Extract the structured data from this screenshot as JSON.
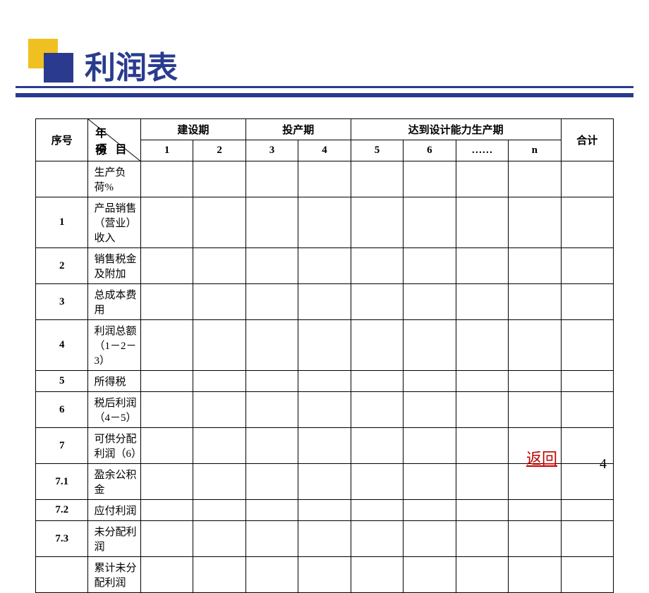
{
  "title": "利润表",
  "decor": {
    "yellow": "#f0c020",
    "navy": "#2a3b8f"
  },
  "header": {
    "seq": "序号",
    "diag_top": "年份",
    "diag_bottom": "项目",
    "groups": [
      {
        "label": "建设期",
        "span": 2
      },
      {
        "label": "投产期",
        "span": 2
      },
      {
        "label": "达到设计能力生产期",
        "span": 4
      }
    ],
    "periods": [
      "1",
      "2",
      "3",
      "4",
      "5",
      "6",
      "……",
      "n"
    ],
    "total": "合计"
  },
  "rows": [
    {
      "seq": "",
      "item": "生产负荷%"
    },
    {
      "seq": "1",
      "item": "产品销售（营业）收入"
    },
    {
      "seq": "2",
      "item": "销售税金及附加"
    },
    {
      "seq": "3",
      "item": "总成本费用"
    },
    {
      "seq": "4",
      "item": "利润总额（1－2－3）"
    },
    {
      "seq": "5",
      "item": "所得税"
    },
    {
      "seq": "6",
      "item": "税后利润（4－5）"
    },
    {
      "seq": "7",
      "item": "可供分配利润（6）"
    },
    {
      "seq": "7.1",
      "item": "盈余公积金"
    },
    {
      "seq": "7.2",
      "item": "应付利润"
    },
    {
      "seq": "7.3",
      "item": "未分配利润"
    },
    {
      "seq": "",
      "item": "累计未分配利润"
    }
  ],
  "return_link": "返回",
  "page_number": "4"
}
